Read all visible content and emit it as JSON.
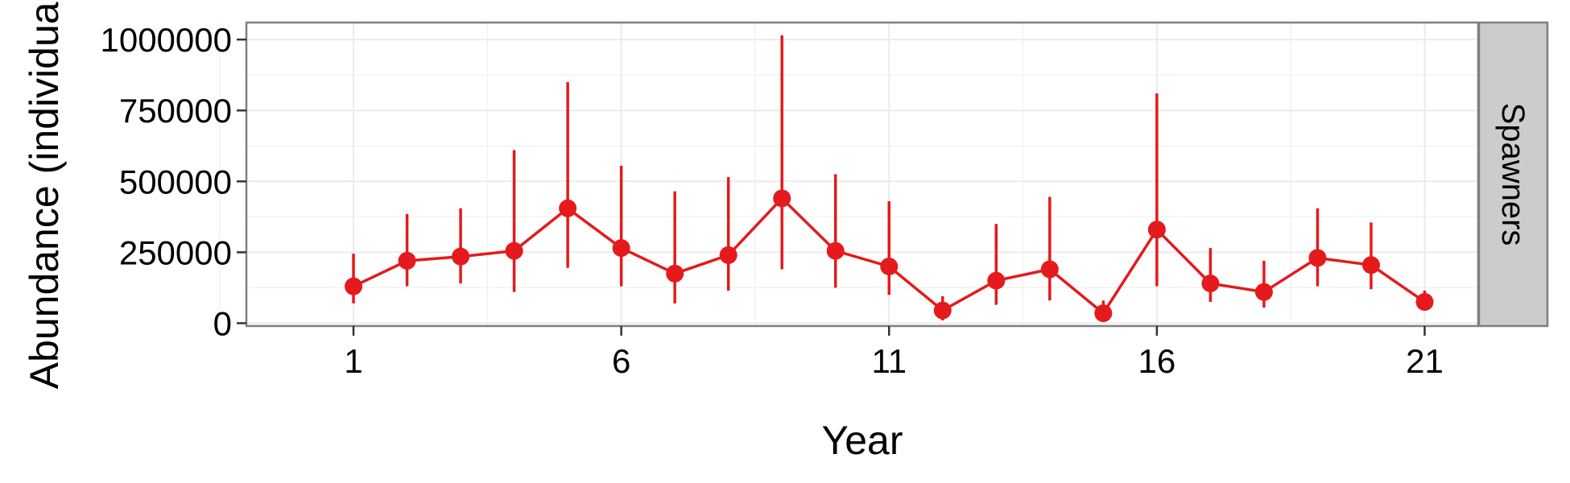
{
  "chart_data": {
    "type": "line",
    "xlabel": "Year",
    "ylabel": "Abundance (individuals)",
    "facet_label": "Spawners",
    "x_ticks": [
      1,
      6,
      11,
      16,
      21
    ],
    "y_ticks": [
      0,
      250000,
      500000,
      750000,
      1000000
    ],
    "y_tick_labels": [
      "0",
      "250000",
      "500000",
      "750000",
      "1000000"
    ],
    "xlim": [
      -1,
      22
    ],
    "ylim": [
      -10000,
      1060000
    ],
    "grid": true,
    "series": [
      {
        "color": "#e41a1c",
        "x": [
          1,
          2,
          3,
          4,
          5,
          6,
          7,
          8,
          9,
          10,
          11,
          12,
          13,
          14,
          15,
          16,
          17,
          18,
          19,
          20,
          21
        ],
        "y": [
          130000,
          220000,
          235000,
          255000,
          405000,
          265000,
          175000,
          240000,
          440000,
          255000,
          200000,
          45000,
          150000,
          190000,
          35000,
          330000,
          140000,
          110000,
          230000,
          205000,
          75000
        ],
        "lower": [
          70000,
          130000,
          140000,
          110000,
          195000,
          130000,
          70000,
          115000,
          190000,
          125000,
          100000,
          10000,
          65000,
          80000,
          5000,
          130000,
          75000,
          55000,
          130000,
          120000,
          45000
        ],
        "upper": [
          245000,
          385000,
          405000,
          610000,
          850000,
          555000,
          465000,
          515000,
          1015000,
          525000,
          430000,
          95000,
          350000,
          445000,
          80000,
          810000,
          265000,
          220000,
          405000,
          355000,
          115000
        ]
      }
    ]
  }
}
